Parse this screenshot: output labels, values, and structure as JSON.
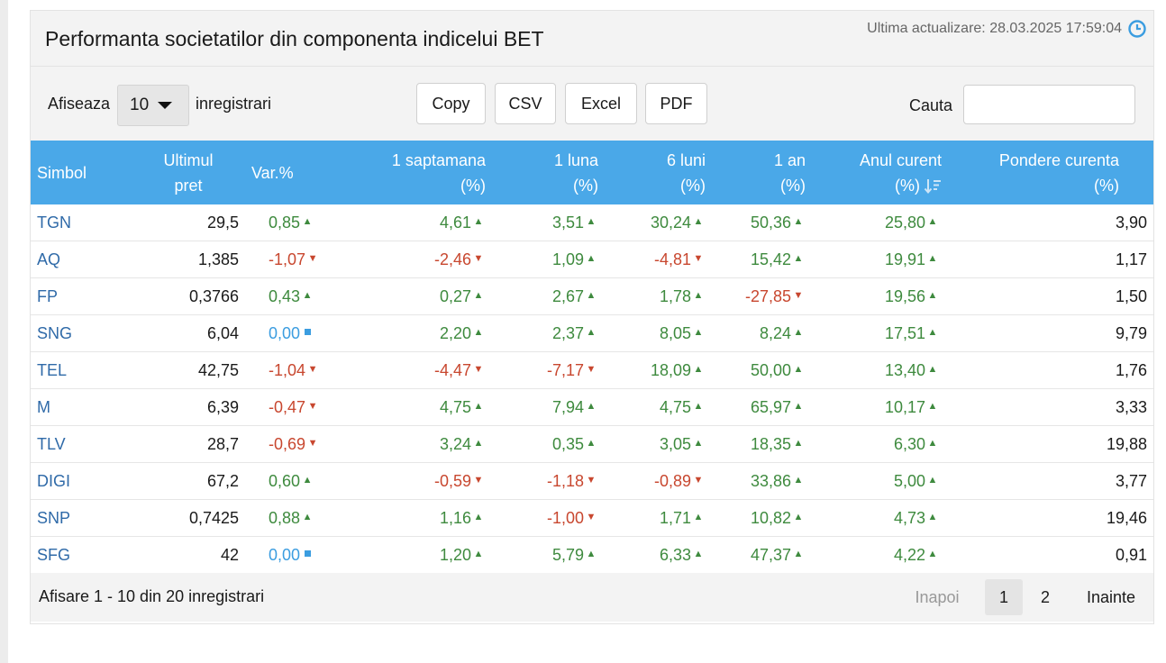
{
  "header": {
    "title": "Performanta societatilor din componenta indicelui BET",
    "last_update": "Ultima actualizare: 28.03.2025 17:59:04"
  },
  "controls": {
    "show_label": "Afiseaza",
    "length_value": "10",
    "records_label": "inregistrari",
    "buttons": [
      "Copy",
      "CSV",
      "Excel",
      "PDF"
    ],
    "search_label": "Cauta",
    "search_value": ""
  },
  "table": {
    "columns": [
      {
        "line1": "",
        "line2": "Simbol"
      },
      {
        "line1": "Ultimul",
        "line2": "pret"
      },
      {
        "line1": "",
        "line2": "Var.%"
      },
      {
        "line1": "1 saptamana",
        "line2": "(%)"
      },
      {
        "line1": "1 luna",
        "line2": "(%)"
      },
      {
        "line1": "6 luni",
        "line2": "(%)"
      },
      {
        "line1": "1 an",
        "line2": "(%)"
      },
      {
        "line1": "Anul curent",
        "line2": "(%)"
      },
      {
        "line1": "Pondere curenta",
        "line2": "(%)"
      }
    ],
    "rows": [
      {
        "symbol": "TGN",
        "price": "29,5",
        "var": "0,85",
        "w1": "4,61",
        "m1": "3,51",
        "m6": "30,24",
        "y1": "50,36",
        "ytd": "25,80",
        "weight": "3,90",
        "dirs": [
          "up",
          "up",
          "up",
          "up",
          "up",
          "up"
        ]
      },
      {
        "symbol": "AQ",
        "price": "1,385",
        "var": "-1,07",
        "w1": "-2,46",
        "m1": "1,09",
        "m6": "-4,81",
        "y1": "15,42",
        "ytd": "19,91",
        "weight": "1,17",
        "dirs": [
          "down",
          "down",
          "up",
          "down",
          "up",
          "up"
        ]
      },
      {
        "symbol": "FP",
        "price": "0,3766",
        "var": "0,43",
        "w1": "0,27",
        "m1": "2,67",
        "m6": "1,78",
        "y1": "-27,85",
        "ytd": "19,56",
        "weight": "1,50",
        "dirs": [
          "up",
          "up",
          "up",
          "up",
          "down",
          "up"
        ]
      },
      {
        "symbol": "SNG",
        "price": "6,04",
        "var": "0,00",
        "w1": "2,20",
        "m1": "2,37",
        "m6": "8,05",
        "y1": "8,24",
        "ytd": "17,51",
        "weight": "9,79",
        "dirs": [
          "flat",
          "up",
          "up",
          "up",
          "up",
          "up"
        ]
      },
      {
        "symbol": "TEL",
        "price": "42,75",
        "var": "-1,04",
        "w1": "-4,47",
        "m1": "-7,17",
        "m6": "18,09",
        "y1": "50,00",
        "ytd": "13,40",
        "weight": "1,76",
        "dirs": [
          "down",
          "down",
          "down",
          "up",
          "up",
          "up"
        ]
      },
      {
        "symbol": "M",
        "price": "6,39",
        "var": "-0,47",
        "w1": "4,75",
        "m1": "7,94",
        "m6": "4,75",
        "y1": "65,97",
        "ytd": "10,17",
        "weight": "3,33",
        "dirs": [
          "down",
          "up",
          "up",
          "up",
          "up",
          "up"
        ]
      },
      {
        "symbol": "TLV",
        "price": "28,7",
        "var": "-0,69",
        "w1": "3,24",
        "m1": "0,35",
        "m6": "3,05",
        "y1": "18,35",
        "ytd": "6,30",
        "weight": "19,88",
        "dirs": [
          "down",
          "up",
          "up",
          "up",
          "up",
          "up"
        ]
      },
      {
        "symbol": "DIGI",
        "price": "67,2",
        "var": "0,60",
        "w1": "-0,59",
        "m1": "-1,18",
        "m6": "-0,89",
        "y1": "33,86",
        "ytd": "5,00",
        "weight": "3,77",
        "dirs": [
          "up",
          "down",
          "down",
          "down",
          "up",
          "up"
        ]
      },
      {
        "symbol": "SNP",
        "price": "0,7425",
        "var": "0,88",
        "w1": "1,16",
        "m1": "-1,00",
        "m6": "1,71",
        "y1": "10,82",
        "ytd": "4,73",
        "weight": "19,46",
        "dirs": [
          "up",
          "up",
          "down",
          "up",
          "up",
          "up"
        ]
      },
      {
        "symbol": "SFG",
        "price": "42",
        "var": "0,00",
        "w1": "1,20",
        "m1": "5,79",
        "m6": "6,33",
        "y1": "47,37",
        "ytd": "4,22",
        "weight": "0,91",
        "dirs": [
          "flat",
          "up",
          "up",
          "up",
          "up",
          "up"
        ]
      }
    ]
  },
  "footer": {
    "info": "Afisare 1 - 10 din 20 inregistrari",
    "prev": "Inapoi",
    "pages": [
      "1",
      "2"
    ],
    "active_page": "1",
    "next": "Inainte"
  },
  "colors": {
    "header_bg": "#4aa8e8",
    "up": "#3e8a3e",
    "down": "#c8472f",
    "flat": "#3b9de0",
    "symbol": "#2f6aa8"
  },
  "icons": {
    "clock": "clock-icon",
    "sort": "sort-desc-icon",
    "length_caret": "caret-down-icon",
    "up": "triangle-up-icon",
    "down": "triangle-down-icon",
    "flat": "square-icon"
  }
}
